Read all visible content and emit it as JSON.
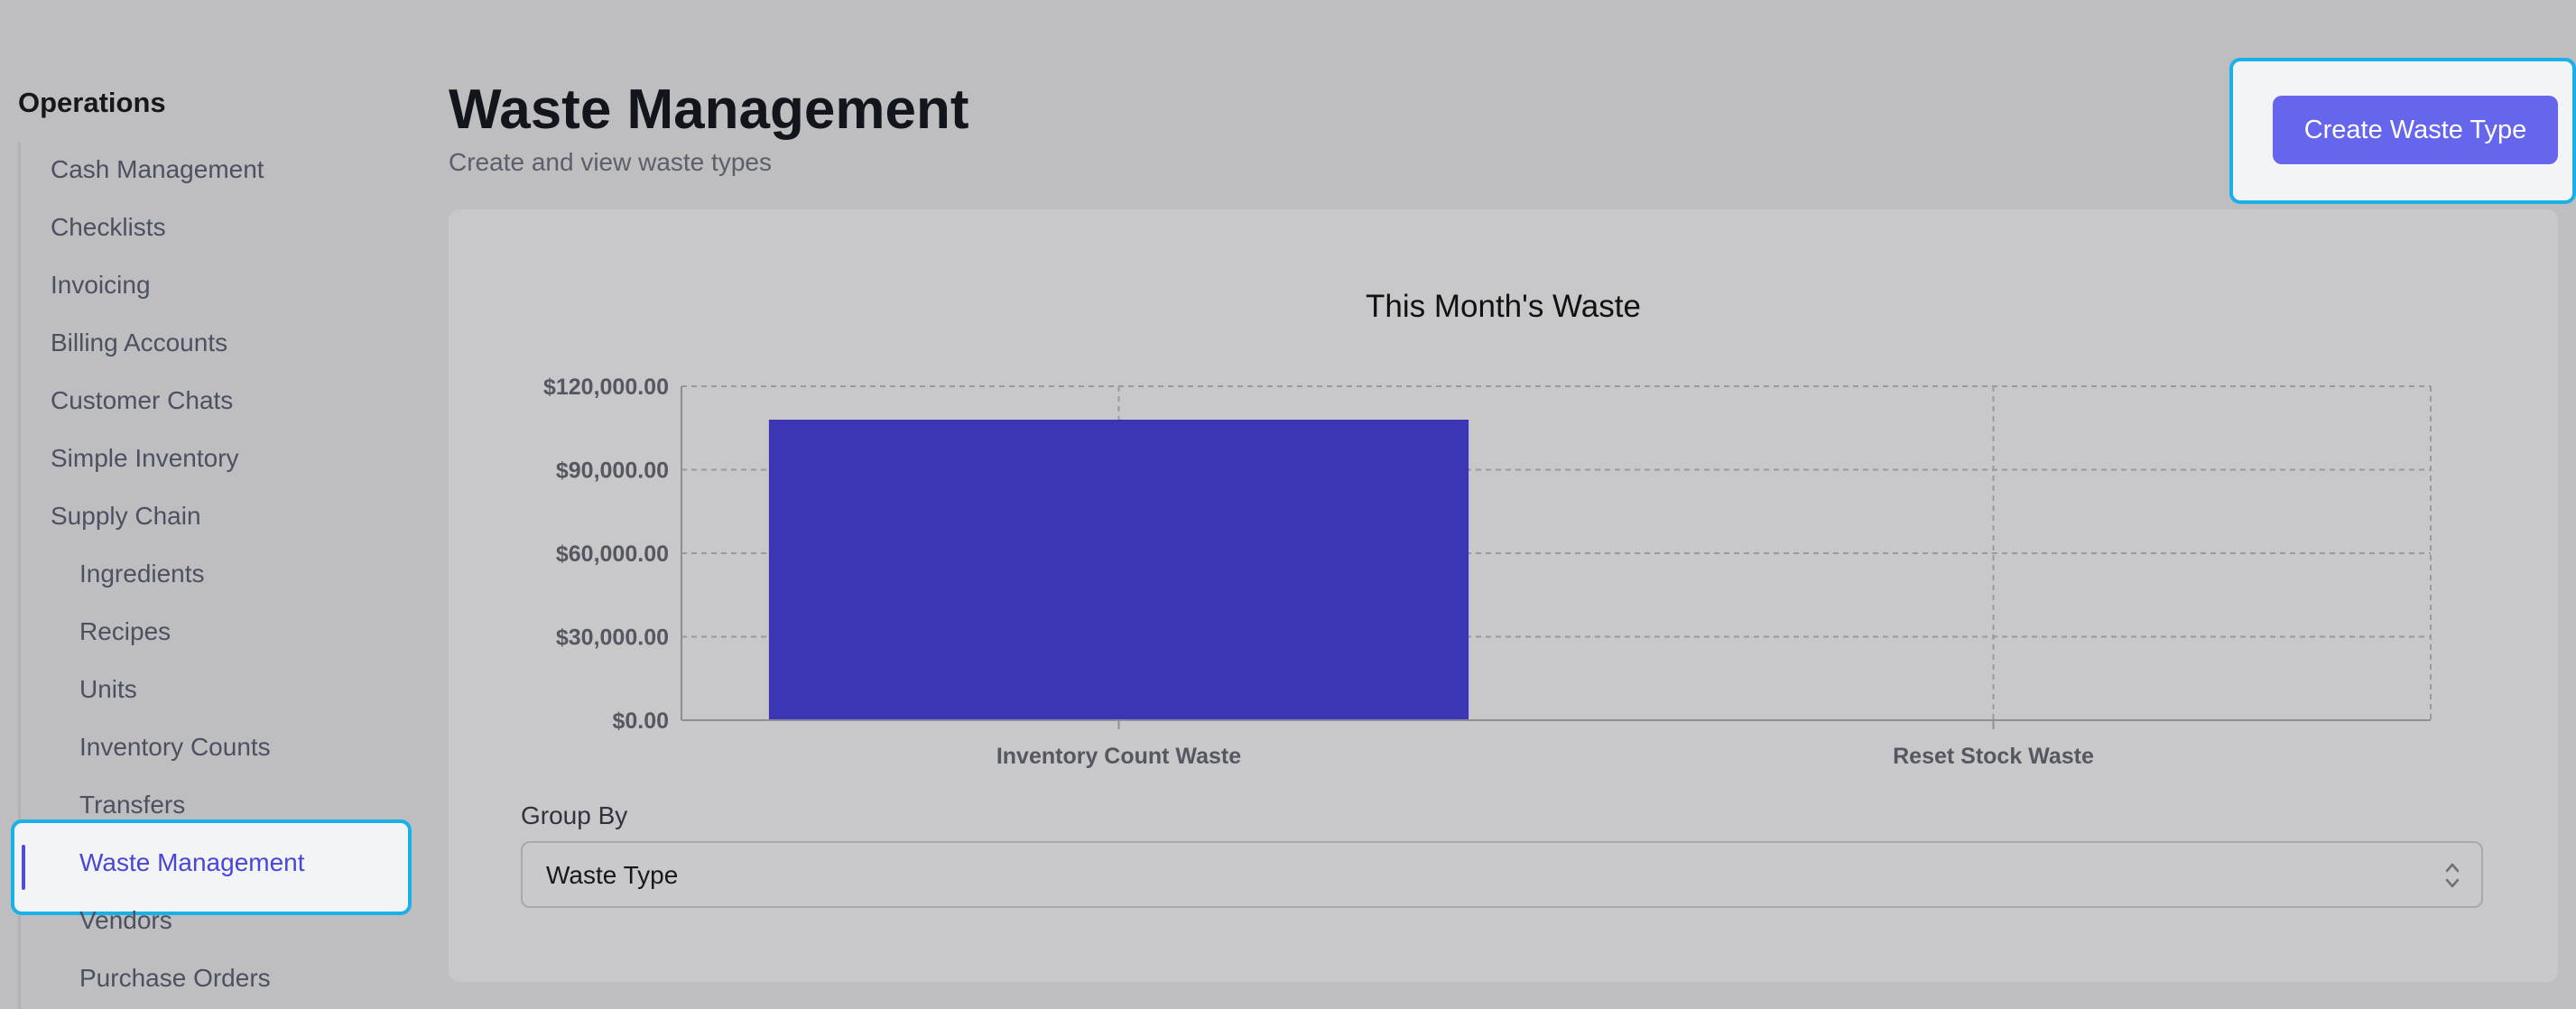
{
  "sidebar": {
    "heading": "Operations",
    "items": [
      {
        "label": "Cash Management"
      },
      {
        "label": "Checklists"
      },
      {
        "label": "Invoicing"
      },
      {
        "label": "Billing Accounts"
      },
      {
        "label": "Customer Chats"
      },
      {
        "label": "Simple Inventory"
      },
      {
        "label": "Supply Chain"
      },
      {
        "label": "Ingredients"
      },
      {
        "label": "Recipes"
      },
      {
        "label": "Units"
      },
      {
        "label": "Inventory Counts"
      },
      {
        "label": "Transfers"
      },
      {
        "label": "Waste Management",
        "active": true
      },
      {
        "label": "Vendors"
      },
      {
        "label": "Purchase Orders"
      }
    ]
  },
  "header": {
    "title": "Waste Management",
    "subtitle": "Create and view waste types",
    "create_button": "Create Waste Type"
  },
  "controls": {
    "group_by_label": "Group By",
    "group_by_value": "Waste Type"
  },
  "colors": {
    "accent": "#6565ee",
    "bar": "#3d36b4",
    "active_nav": "#4a45d6",
    "highlight_border": "#1ab0e8"
  },
  "chart_data": {
    "type": "bar",
    "title": "This Month's Waste",
    "categories": [
      "Inventory Count Waste",
      "Reset Stock Waste"
    ],
    "values": [
      108000,
      0
    ],
    "ylim": [
      0,
      120000
    ],
    "yticks": [
      0,
      30000,
      60000,
      90000,
      120000
    ],
    "ytick_labels": [
      "$0.00",
      "$30,000.00",
      "$60,000.00",
      "$90,000.00",
      "$120,000.00"
    ],
    "xlabel": "",
    "ylabel": "",
    "grid": true,
    "legend": "none"
  }
}
